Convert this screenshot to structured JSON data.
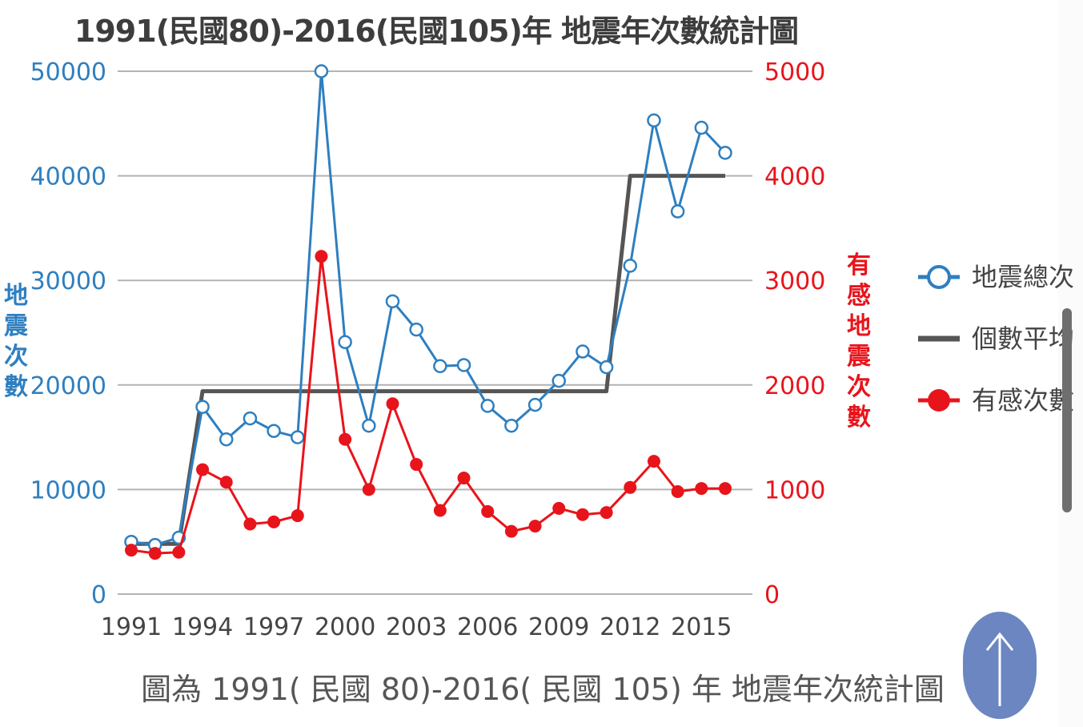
{
  "chart_data": {
    "type": "line",
    "title": "1991(民國80)-2016(民國105)年 地震年次數統計圖",
    "caption": "圖為 1991( 民國 80)-2016( 民國 105) 年 地震年次統計圖",
    "x": [
      1991,
      1992,
      1993,
      1994,
      1995,
      1996,
      1997,
      1998,
      1999,
      2000,
      2001,
      2002,
      2003,
      2004,
      2005,
      2006,
      2007,
      2008,
      2009,
      2010,
      2011,
      2012,
      2013,
      2014,
      2015,
      2016
    ],
    "x_ticks": [
      "1991",
      "1994",
      "1997",
      "2000",
      "2003",
      "2006",
      "2009",
      "2012",
      "2015"
    ],
    "y_left": {
      "label": "地震次數",
      "ticks": [
        "0",
        "10000",
        "20000",
        "30000",
        "40000",
        "50000"
      ],
      "lim": [
        0,
        50000
      ]
    },
    "y_right": {
      "label": "有感地震次數",
      "ticks": [
        "0",
        "1000",
        "2000",
        "3000",
        "4000",
        "5000"
      ],
      "lim": [
        0,
        5000
      ]
    },
    "grid": true,
    "legend_position": "right",
    "series": [
      {
        "name": "地震總次",
        "axis": "left",
        "color": "#2e7fc0",
        "marker": "open-circle",
        "values": [
          5000,
          4700,
          5400,
          17900,
          14800,
          16800,
          15600,
          15000,
          50000,
          24100,
          16100,
          28000,
          25300,
          21800,
          21900,
          18000,
          16100,
          18100,
          20400,
          23200,
          21700,
          31400,
          45300,
          36600,
          44600,
          42200
        ]
      },
      {
        "name": "個數平均",
        "axis": "left",
        "color": "#555555",
        "marker": "none",
        "step": true,
        "values": [
          4800,
          4800,
          4800,
          19400,
          19400,
          19400,
          19400,
          19400,
          19400,
          19400,
          19400,
          19400,
          19400,
          19400,
          19400,
          19400,
          19400,
          19400,
          19400,
          19400,
          19400,
          40000,
          40000,
          40000,
          40000,
          40000
        ]
      },
      {
        "name": "有感次數",
        "axis": "right",
        "color": "#e8141b",
        "marker": "filled-circle",
        "values": [
          420,
          390,
          400,
          1190,
          1070,
          670,
          690,
          750,
          3230,
          1480,
          1000,
          1820,
          1240,
          800,
          1110,
          790,
          600,
          650,
          820,
          760,
          780,
          1020,
          1270,
          980,
          1010,
          1010
        ]
      }
    ]
  }
}
